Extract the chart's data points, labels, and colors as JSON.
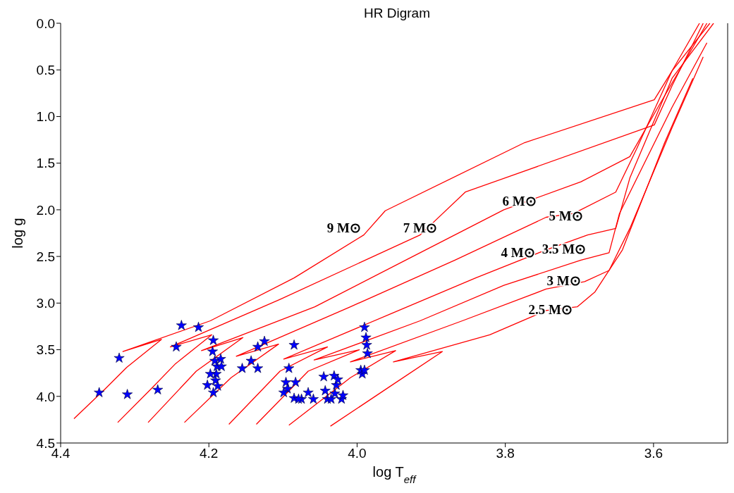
{
  "chart_data": {
    "type": "line",
    "title": "HR Digram",
    "xlabel": "log T$_{eff}$",
    "ylabel": "log g",
    "xlim": [
      4.4,
      3.5
    ],
    "xticks": [
      4.4,
      4.2,
      {
        "value": 4,
        "label": "4.0"
      },
      3.8,
      3.6
    ],
    "ylim": [
      4.5,
      0
    ],
    "yticks": [
      {
        "value": 0,
        "label": "0.0"
      },
      0.5,
      {
        "value": 1,
        "label": "1.0"
      },
      1.5,
      {
        "value": 2,
        "label": "2.0"
      },
      2.5,
      {
        "value": 3,
        "label": "3.0"
      },
      3.5,
      {
        "value": 4,
        "label": "4.0"
      },
      4.5
    ],
    "series": [
      {
        "name": "9 M⊙",
        "color": "#ff0000",
        "x": [
          4.382,
          4.34,
          4.311,
          4.264,
          4.316,
          4.198,
          4.085,
          3.991,
          3.962,
          3.774,
          3.599,
          3.575,
          3.538
        ],
        "values": [
          4.24,
          3.92,
          3.69,
          3.39,
          3.52,
          3.19,
          2.73,
          2.27,
          2.01,
          1.28,
          0.82,
          0.51,
          0.0
        ]
      },
      {
        "name": "7 M⊙",
        "color": "#ff0000",
        "x": [
          4.323,
          4.278,
          4.245,
          4.196,
          4.252,
          4.104,
          3.915,
          3.854,
          3.599,
          3.575,
          3.533
        ],
        "values": [
          4.28,
          3.92,
          3.65,
          3.34,
          3.47,
          2.96,
          2.27,
          1.81,
          1.09,
          0.67,
          0.0
        ]
      },
      {
        "name": "6 M⊙",
        "color": "#ff0000",
        "x": [
          4.282,
          4.217,
          4.154,
          4.21,
          4.057,
          3.915,
          3.802,
          3.698,
          3.632,
          3.594,
          3.528
        ],
        "values": [
          4.28,
          3.73,
          3.37,
          3.51,
          3.04,
          2.46,
          2.0,
          1.7,
          1.43,
          0.9,
          0.0
        ]
      },
      {
        "name": "5 M⊙",
        "color": "#ff0000",
        "x": [
          4.233,
          4.17,
          4.106,
          4.163,
          4.009,
          3.868,
          3.745,
          3.708,
          3.651,
          3.623,
          3.575,
          3.524
        ],
        "values": [
          4.28,
          3.8,
          3.44,
          3.57,
          3.04,
          2.54,
          2.08,
          2.04,
          1.81,
          1.35,
          0.51,
          0.0
        ]
      },
      {
        "name": "4 M⊙",
        "color": "#ff0000",
        "x": [
          4.173,
          4.104,
          4.04,
          4.099,
          3.953,
          3.84,
          3.745,
          3.689,
          3.651,
          3.632,
          3.575,
          3.519
        ],
        "values": [
          4.3,
          3.73,
          3.47,
          3.6,
          3.11,
          2.73,
          2.43,
          2.27,
          2.2,
          1.66,
          0.59,
          0.0
        ]
      },
      {
        "name": "3.5 M⊙",
        "color": "#ff0000",
        "x": [
          4.136,
          4.066,
          3.997,
          4.058,
          3.915,
          3.802,
          3.698,
          3.66,
          3.646,
          3.575,
          3.528
        ],
        "values": [
          4.3,
          3.73,
          3.5,
          3.61,
          3.19,
          2.81,
          2.54,
          2.46,
          2.04,
          0.9,
          0.21
        ]
      },
      {
        "name": "3 M⊙",
        "color": "#ff0000",
        "x": [
          4.092,
          4.009,
          3.948,
          4.009,
          3.858,
          3.745,
          3.693,
          3.66,
          3.632,
          3.575,
          3.533
        ],
        "values": [
          4.31,
          3.8,
          3.51,
          3.63,
          3.19,
          2.85,
          2.77,
          2.65,
          2.2,
          1.12,
          0.36
        ]
      },
      {
        "name": "2.5 M⊙",
        "color": "#ff0000",
        "x": [
          4.036,
          3.953,
          3.885,
          3.951,
          3.821,
          3.745,
          3.703,
          3.679,
          3.642,
          3.585,
          3.547
        ],
        "values": [
          4.32,
          3.88,
          3.52,
          3.63,
          3.34,
          3.08,
          3.04,
          2.88,
          2.43,
          1.28,
          0.59
        ]
      },
      {
        "type": "scatter",
        "color": "#0000ff",
        "marker": "star",
        "x": [
          4.348,
          4.321,
          4.31,
          4.269,
          4.237,
          4.244,
          4.214,
          4.194,
          4.195,
          4.192,
          4.189,
          4.19,
          4.191,
          4.188,
          4.194,
          4.198,
          4.184,
          4.183,
          4.202,
          4.155,
          4.143,
          4.134,
          4.125,
          4.134,
          4.085,
          4.092,
          4.096,
          4.094,
          4.099,
          4.085,
          4.075,
          4.066,
          4.083,
          4.079,
          4.059,
          4.045,
          4.043,
          4.04,
          4.035,
          4.03,
          4.028,
          4.031,
          4.026,
          4.021,
          4.019,
          3.99,
          3.988,
          3.987,
          3.986,
          3.995,
          3.993,
          3.99
        ],
        "values": [
          3.96,
          3.59,
          3.98,
          3.93,
          3.24,
          3.47,
          3.26,
          3.4,
          3.52,
          3.62,
          3.68,
          3.76,
          3.83,
          3.89,
          3.96,
          3.76,
          3.6,
          3.68,
          3.88,
          3.7,
          3.62,
          3.7,
          3.41,
          3.47,
          3.45,
          3.7,
          3.85,
          3.92,
          3.96,
          4.02,
          4.03,
          3.96,
          3.85,
          4.03,
          4.03,
          3.79,
          3.94,
          4.03,
          4.03,
          3.97,
          3.88,
          3.78,
          3.82,
          4.03,
          3.99,
          3.26,
          3.37,
          3.45,
          3.54,
          3.72,
          3.76,
          3.72
        ]
      }
    ]
  }
}
